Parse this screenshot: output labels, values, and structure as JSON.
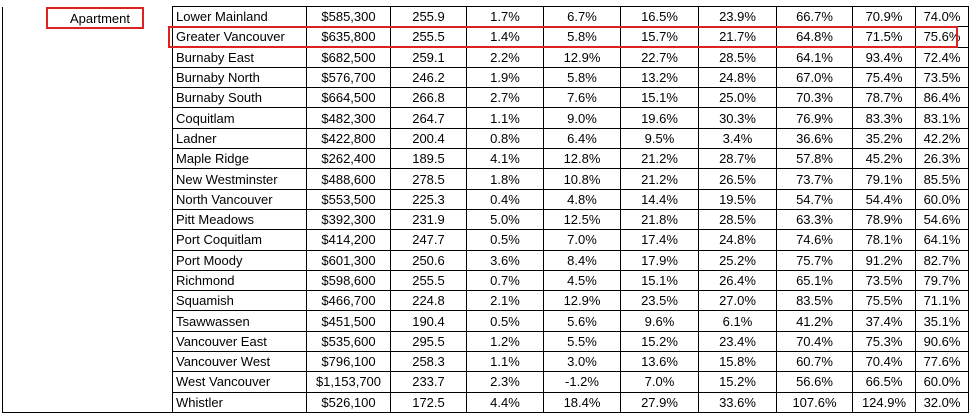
{
  "table": {
    "group_label": "Apartment",
    "rows": [
      [
        "Lower Mainland",
        "$585,300",
        "255.9",
        "1.7%",
        "6.7%",
        "16.5%",
        "23.9%",
        "66.7%",
        "70.9%",
        "74.0%"
      ],
      [
        "Greater Vancouver",
        "$635,800",
        "255.5",
        "1.4%",
        "5.8%",
        "15.7%",
        "21.7%",
        "64.8%",
        "71.5%",
        "75.6%"
      ],
      [
        "Burnaby East",
        "$682,500",
        "259.1",
        "2.2%",
        "12.9%",
        "22.7%",
        "28.5%",
        "64.1%",
        "93.4%",
        "72.4%"
      ],
      [
        "Burnaby North",
        "$576,700",
        "246.2",
        "1.9%",
        "5.8%",
        "13.2%",
        "24.8%",
        "67.0%",
        "75.4%",
        "73.5%"
      ],
      [
        "Burnaby South",
        "$664,500",
        "266.8",
        "2.7%",
        "7.6%",
        "15.1%",
        "25.0%",
        "70.3%",
        "78.7%",
        "86.4%"
      ],
      [
        "Coquitlam",
        "$482,300",
        "264.7",
        "1.1%",
        "9.0%",
        "19.6%",
        "30.3%",
        "76.9%",
        "83.3%",
        "83.1%"
      ],
      [
        "Ladner",
        "$422,800",
        "200.4",
        "0.8%",
        "6.4%",
        "9.5%",
        "3.4%",
        "36.6%",
        "35.2%",
        "42.2%"
      ],
      [
        "Maple Ridge",
        "$262,400",
        "189.5",
        "4.1%",
        "12.8%",
        "21.2%",
        "28.7%",
        "57.8%",
        "45.2%",
        "26.3%"
      ],
      [
        "New Westminster",
        "$488,600",
        "278.5",
        "1.8%",
        "10.8%",
        "21.2%",
        "26.5%",
        "73.7%",
        "79.1%",
        "85.5%"
      ],
      [
        "North Vancouver",
        "$553,500",
        "225.3",
        "0.4%",
        "4.8%",
        "14.4%",
        "19.5%",
        "54.7%",
        "54.4%",
        "60.0%"
      ],
      [
        "Pitt Meadows",
        "$392,300",
        "231.9",
        "5.0%",
        "12.5%",
        "21.8%",
        "28.5%",
        "63.3%",
        "78.9%",
        "54.6%"
      ],
      [
        "Port Coquitlam",
        "$414,200",
        "247.7",
        "0.5%",
        "7.0%",
        "17.4%",
        "24.8%",
        "74.6%",
        "78.1%",
        "64.1%"
      ],
      [
        "Port Moody",
        "$601,300",
        "250.6",
        "3.6%",
        "8.4%",
        "17.9%",
        "25.2%",
        "75.7%",
        "91.2%",
        "82.7%"
      ],
      [
        "Richmond",
        "$598,600",
        "255.5",
        "0.7%",
        "4.5%",
        "15.1%",
        "26.4%",
        "65.1%",
        "73.5%",
        "79.7%"
      ],
      [
        "Squamish",
        "$466,700",
        "224.8",
        "2.1%",
        "12.9%",
        "23.5%",
        "27.0%",
        "83.5%",
        "75.5%",
        "71.1%"
      ],
      [
        "Tsawwassen",
        "$451,500",
        "190.4",
        "0.5%",
        "5.6%",
        "9.6%",
        "6.1%",
        "41.2%",
        "37.4%",
        "35.1%"
      ],
      [
        "Vancouver East",
        "$535,600",
        "295.5",
        "1.2%",
        "5.5%",
        "15.2%",
        "23.4%",
        "70.4%",
        "75.3%",
        "90.6%"
      ],
      [
        "Vancouver West",
        "$796,100",
        "258.3",
        "1.1%",
        "3.0%",
        "13.6%",
        "15.8%",
        "60.7%",
        "70.4%",
        "77.6%"
      ],
      [
        "West Vancouver",
        "$1,153,700",
        "233.7",
        "2.3%",
        "-1.2%",
        "7.0%",
        "15.2%",
        "56.6%",
        "66.5%",
        "60.0%"
      ],
      [
        "Whistler",
        "$526,100",
        "172.5",
        "4.4%",
        "18.4%",
        "27.9%",
        "33.6%",
        "107.6%",
        "124.9%",
        "32.0%"
      ]
    ]
  }
}
